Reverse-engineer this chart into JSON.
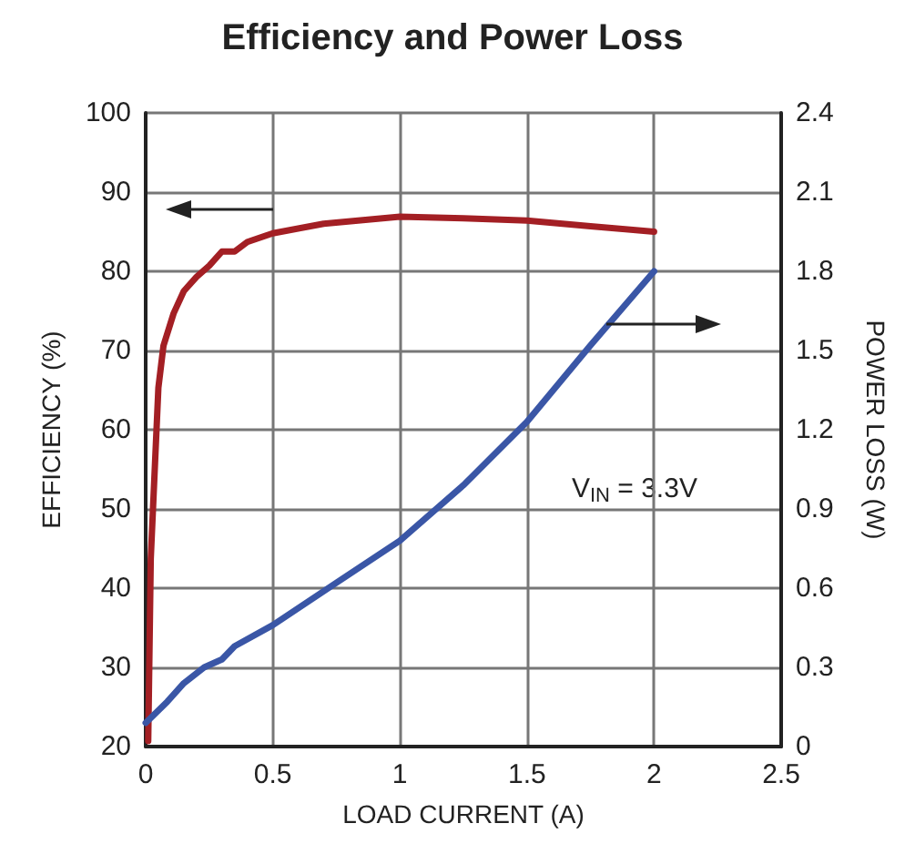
{
  "chart_data": {
    "type": "line",
    "title": "Efficiency and Power Loss",
    "xlabel": "LOAD CURRENT (A)",
    "ylabel": "EFFICIENCY (%)",
    "y2label": "POWER LOSS (W)",
    "annotations": [
      "V$_{IN}$ = 3.3V"
    ],
    "xlim": [
      0,
      2.5
    ],
    "xticks": [
      0,
      0.5,
      1,
      1.5,
      2,
      2.5
    ],
    "ylim": [
      20,
      100
    ],
    "yticks": [
      20,
      30,
      40,
      50,
      60,
      70,
      80,
      90,
      100
    ],
    "y2lim": [
      0,
      2.4
    ],
    "y2ticks": [
      0,
      0.3,
      0.6,
      0.9,
      1.2,
      1.5,
      1.8,
      2.1,
      2.4
    ],
    "grid": true,
    "marker": "none",
    "line_style": "solid",
    "series": [
      {
        "color": "#a31f24",
        "x": [
          0.01,
          0.02,
          0.05,
          0.07,
          0.11,
          0.15,
          0.2,
          0.25,
          0.3,
          0.35,
          0.4,
          0.5,
          0.7,
          1.0,
          1.25,
          1.5,
          1.75,
          2.0
        ],
        "values": [
          20.7,
          43.7,
          65.3,
          70.6,
          74.7,
          77.5,
          79.3,
          80.7,
          82.5,
          82.5,
          83.7,
          84.8,
          86,
          86.9,
          86.7,
          86.4,
          85.7,
          85
        ]
      },
      {
        "color": "#3a56a6",
        "axis": "y2",
        "x": [
          0,
          0.085,
          0.15,
          0.23,
          0.3,
          0.35,
          0.5,
          0.75,
          1.0,
          1.25,
          1.5,
          1.75,
          2.0
        ],
        "values": [
          0.09,
          0.17,
          0.24,
          0.3,
          0.33,
          0.38,
          0.46,
          0.62,
          0.78,
          0.99,
          1.23,
          1.52,
          1.8
        ]
      }
    ]
  }
}
